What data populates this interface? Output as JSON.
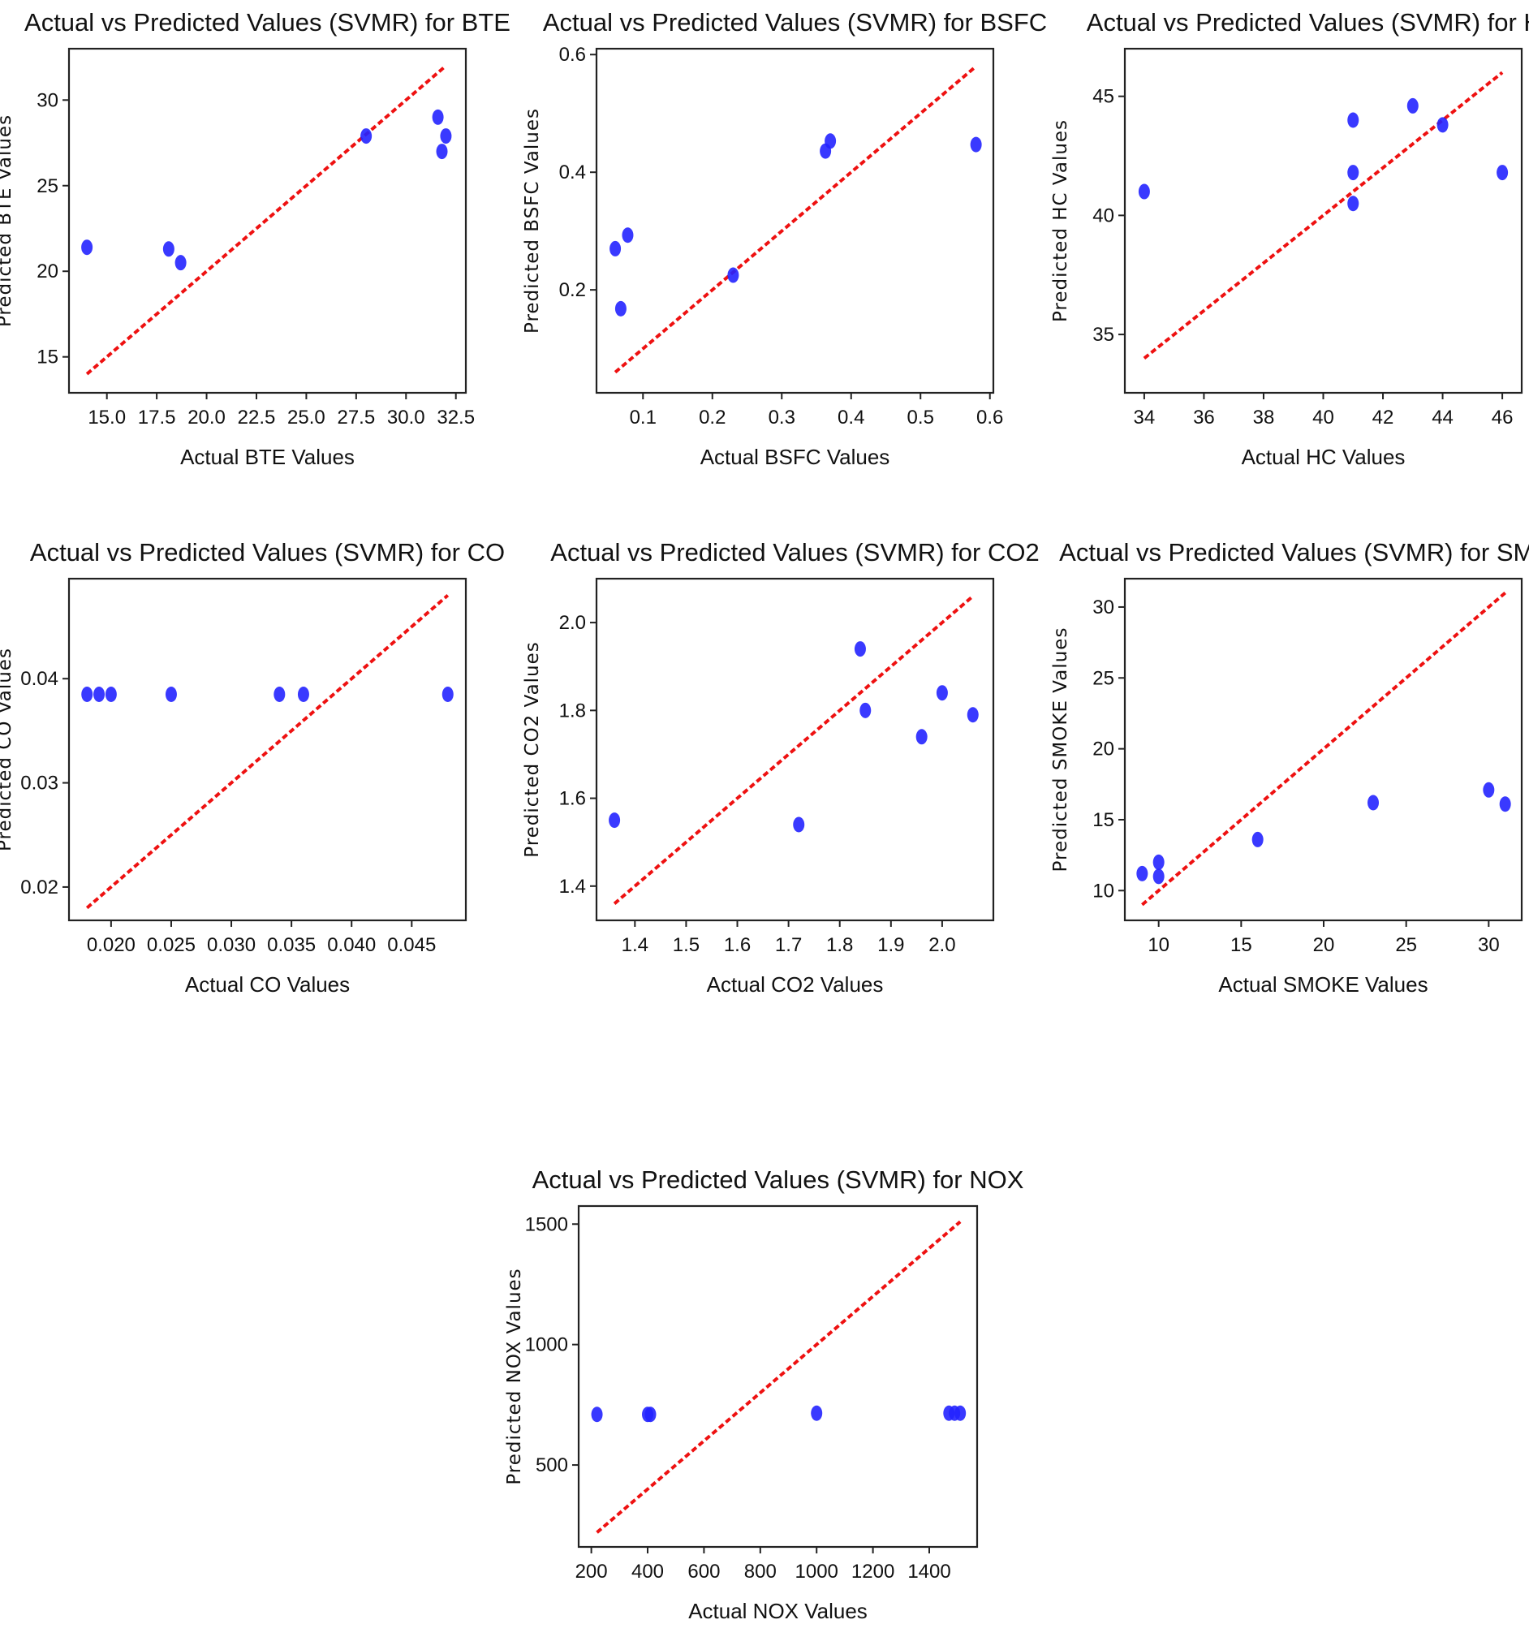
{
  "chart_data": [
    {
      "type": "scatter",
      "title": "Actual vs Predicted Values (SVMR) for BTE",
      "xlabel": "Actual BTE Values",
      "ylabel": "Predicted BTE Values",
      "xlim": [
        13.1,
        33.0
      ],
      "ylim": [
        12.9,
        33.0
      ],
      "xticks": [
        15.0,
        17.5,
        20.0,
        22.5,
        25.0,
        27.5,
        30.0,
        32.5
      ],
      "xtick_labels": [
        "15.0",
        "17.5",
        "20.0",
        "22.5",
        "25.0",
        "27.5",
        "30.0",
        "32.5"
      ],
      "yticks": [
        15,
        20,
        25,
        30
      ],
      "ytick_labels": [
        "15",
        "20",
        "25",
        "30"
      ],
      "reference_line": [
        14.0,
        32.0
      ],
      "points": [
        [
          14.0,
          21.4
        ],
        [
          18.1,
          21.3
        ],
        [
          18.7,
          20.5
        ],
        [
          28.0,
          27.9
        ],
        [
          31.6,
          29.0
        ],
        [
          31.8,
          27.0
        ],
        [
          32.0,
          27.9
        ]
      ]
    },
    {
      "type": "scatter",
      "title": "Actual vs Predicted Values (SVMR) for BSFC",
      "xlabel": "Actual BSFC Values",
      "ylabel": "Predicted BSFC Values",
      "xlim": [
        0.033,
        0.605
      ],
      "ylim": [
        0.025,
        0.61
      ],
      "xticks": [
        0.1,
        0.2,
        0.3,
        0.4,
        0.5,
        0.6
      ],
      "xtick_labels": [
        "0.1",
        "0.2",
        "0.3",
        "0.4",
        "0.5",
        "0.6"
      ],
      "yticks": [
        0.2,
        0.4,
        0.6
      ],
      "ytick_labels": [
        "0.2",
        "0.4",
        "0.6"
      ],
      "reference_line": [
        0.06,
        0.58
      ],
      "points": [
        [
          0.06,
          0.27
        ],
        [
          0.068,
          0.168
        ],
        [
          0.078,
          0.293
        ],
        [
          0.23,
          0.225
        ],
        [
          0.363,
          0.436
        ],
        [
          0.37,
          0.453
        ],
        [
          0.58,
          0.447
        ]
      ]
    },
    {
      "type": "scatter",
      "title": "Actual vs Predicted Values (SVMR) for HC",
      "xlabel": "Actual HC Values",
      "ylabel": "Predicted HC Values",
      "xlim": [
        33.35,
        46.65
      ],
      "ylim": [
        32.55,
        47.0
      ],
      "xticks": [
        34,
        36,
        38,
        40,
        42,
        44,
        46
      ],
      "xtick_labels": [
        "34",
        "36",
        "38",
        "40",
        "42",
        "44",
        "46"
      ],
      "yticks": [
        35,
        40,
        45
      ],
      "ytick_labels": [
        "35",
        "40",
        "45"
      ],
      "reference_line": [
        34,
        46
      ],
      "points": [
        [
          34,
          41.0
        ],
        [
          41,
          44.0
        ],
        [
          41,
          41.8
        ],
        [
          41,
          40.5
        ],
        [
          43,
          44.6
        ],
        [
          44,
          43.8
        ],
        [
          46,
          41.8
        ]
      ]
    },
    {
      "type": "scatter",
      "title": "Actual vs Predicted Values (SVMR) for CO",
      "xlabel": "Actual CO Values",
      "ylabel": "Predicted CO Values",
      "xlim": [
        0.0165,
        0.0495
      ],
      "ylim": [
        0.0168,
        0.0496
      ],
      "xticks": [
        0.02,
        0.025,
        0.03,
        0.035,
        0.04,
        0.045
      ],
      "xtick_labels": [
        "0.020",
        "0.025",
        "0.030",
        "0.035",
        "0.040",
        "0.045"
      ],
      "yticks": [
        0.02,
        0.03,
        0.04
      ],
      "ytick_labels": [
        "0.02",
        "0.03",
        "0.04"
      ],
      "reference_line": [
        0.018,
        0.048
      ],
      "points": [
        [
          0.018,
          0.0385
        ],
        [
          0.019,
          0.0385
        ],
        [
          0.02,
          0.0385
        ],
        [
          0.025,
          0.0385
        ],
        [
          0.034,
          0.0385
        ],
        [
          0.036,
          0.0385
        ],
        [
          0.048,
          0.0385
        ]
      ]
    },
    {
      "type": "scatter",
      "title": "Actual vs Predicted Values (SVMR) for CO2",
      "xlabel": "Actual CO2 Values",
      "ylabel": "Predicted CO2 Values",
      "xlim": [
        1.325,
        2.1
      ],
      "ylim": [
        1.322,
        2.1
      ],
      "xticks": [
        1.4,
        1.5,
        1.6,
        1.7,
        1.8,
        1.9,
        2.0
      ],
      "xtick_labels": [
        "1.4",
        "1.5",
        "1.6",
        "1.7",
        "1.8",
        "1.9",
        "2.0"
      ],
      "yticks": [
        1.4,
        1.6,
        1.8,
        2.0
      ],
      "ytick_labels": [
        "1.4",
        "1.6",
        "1.8",
        "2.0"
      ],
      "reference_line": [
        1.36,
        2.06
      ],
      "points": [
        [
          1.36,
          1.55
        ],
        [
          1.72,
          1.54
        ],
        [
          1.84,
          1.94
        ],
        [
          1.85,
          1.8
        ],
        [
          1.96,
          1.74
        ],
        [
          2.0,
          1.84
        ],
        [
          2.06,
          1.79
        ]
      ]
    },
    {
      "type": "scatter",
      "title": "Actual vs Predicted Values (SVMR) for SMOKE",
      "xlabel": "Actual SMOKE Values",
      "ylabel": "Predicted SMOKE Values",
      "xlim": [
        7.95,
        32.0
      ],
      "ylim": [
        7.9,
        32.0
      ],
      "xticks": [
        10,
        15,
        20,
        25,
        30
      ],
      "xtick_labels": [
        "10",
        "15",
        "20",
        "25",
        "30"
      ],
      "yticks": [
        10,
        15,
        20,
        25,
        30
      ],
      "ytick_labels": [
        "10",
        "15",
        "20",
        "25",
        "30"
      ],
      "reference_line": [
        9,
        31
      ],
      "points": [
        [
          9,
          11.2
        ],
        [
          10,
          12.0
        ],
        [
          10,
          11.0
        ],
        [
          16,
          13.6
        ],
        [
          23,
          16.2
        ],
        [
          30,
          17.1
        ],
        [
          31,
          16.1
        ]
      ]
    },
    {
      "type": "scatter",
      "title": "Actual vs Predicted Values (SVMR) for NOX",
      "xlabel": "Actual NOX Values",
      "ylabel": "Predicted NOX Values",
      "xlim": [
        155,
        1570
      ],
      "ylim": [
        160,
        1575
      ],
      "xticks": [
        200,
        400,
        600,
        800,
        1000,
        1200,
        1400
      ],
      "xtick_labels": [
        "200",
        "400",
        "600",
        "800",
        "1000",
        "1200",
        "1400"
      ],
      "yticks": [
        500,
        1000,
        1500
      ],
      "ytick_labels": [
        "500",
        "1000",
        "1500"
      ],
      "reference_line": [
        220,
        1510
      ],
      "points": [
        [
          220,
          710
        ],
        [
          400,
          710
        ],
        [
          410,
          710
        ],
        [
          1000,
          715
        ],
        [
          1470,
          715
        ],
        [
          1490,
          715
        ],
        [
          1510,
          715
        ]
      ]
    }
  ]
}
